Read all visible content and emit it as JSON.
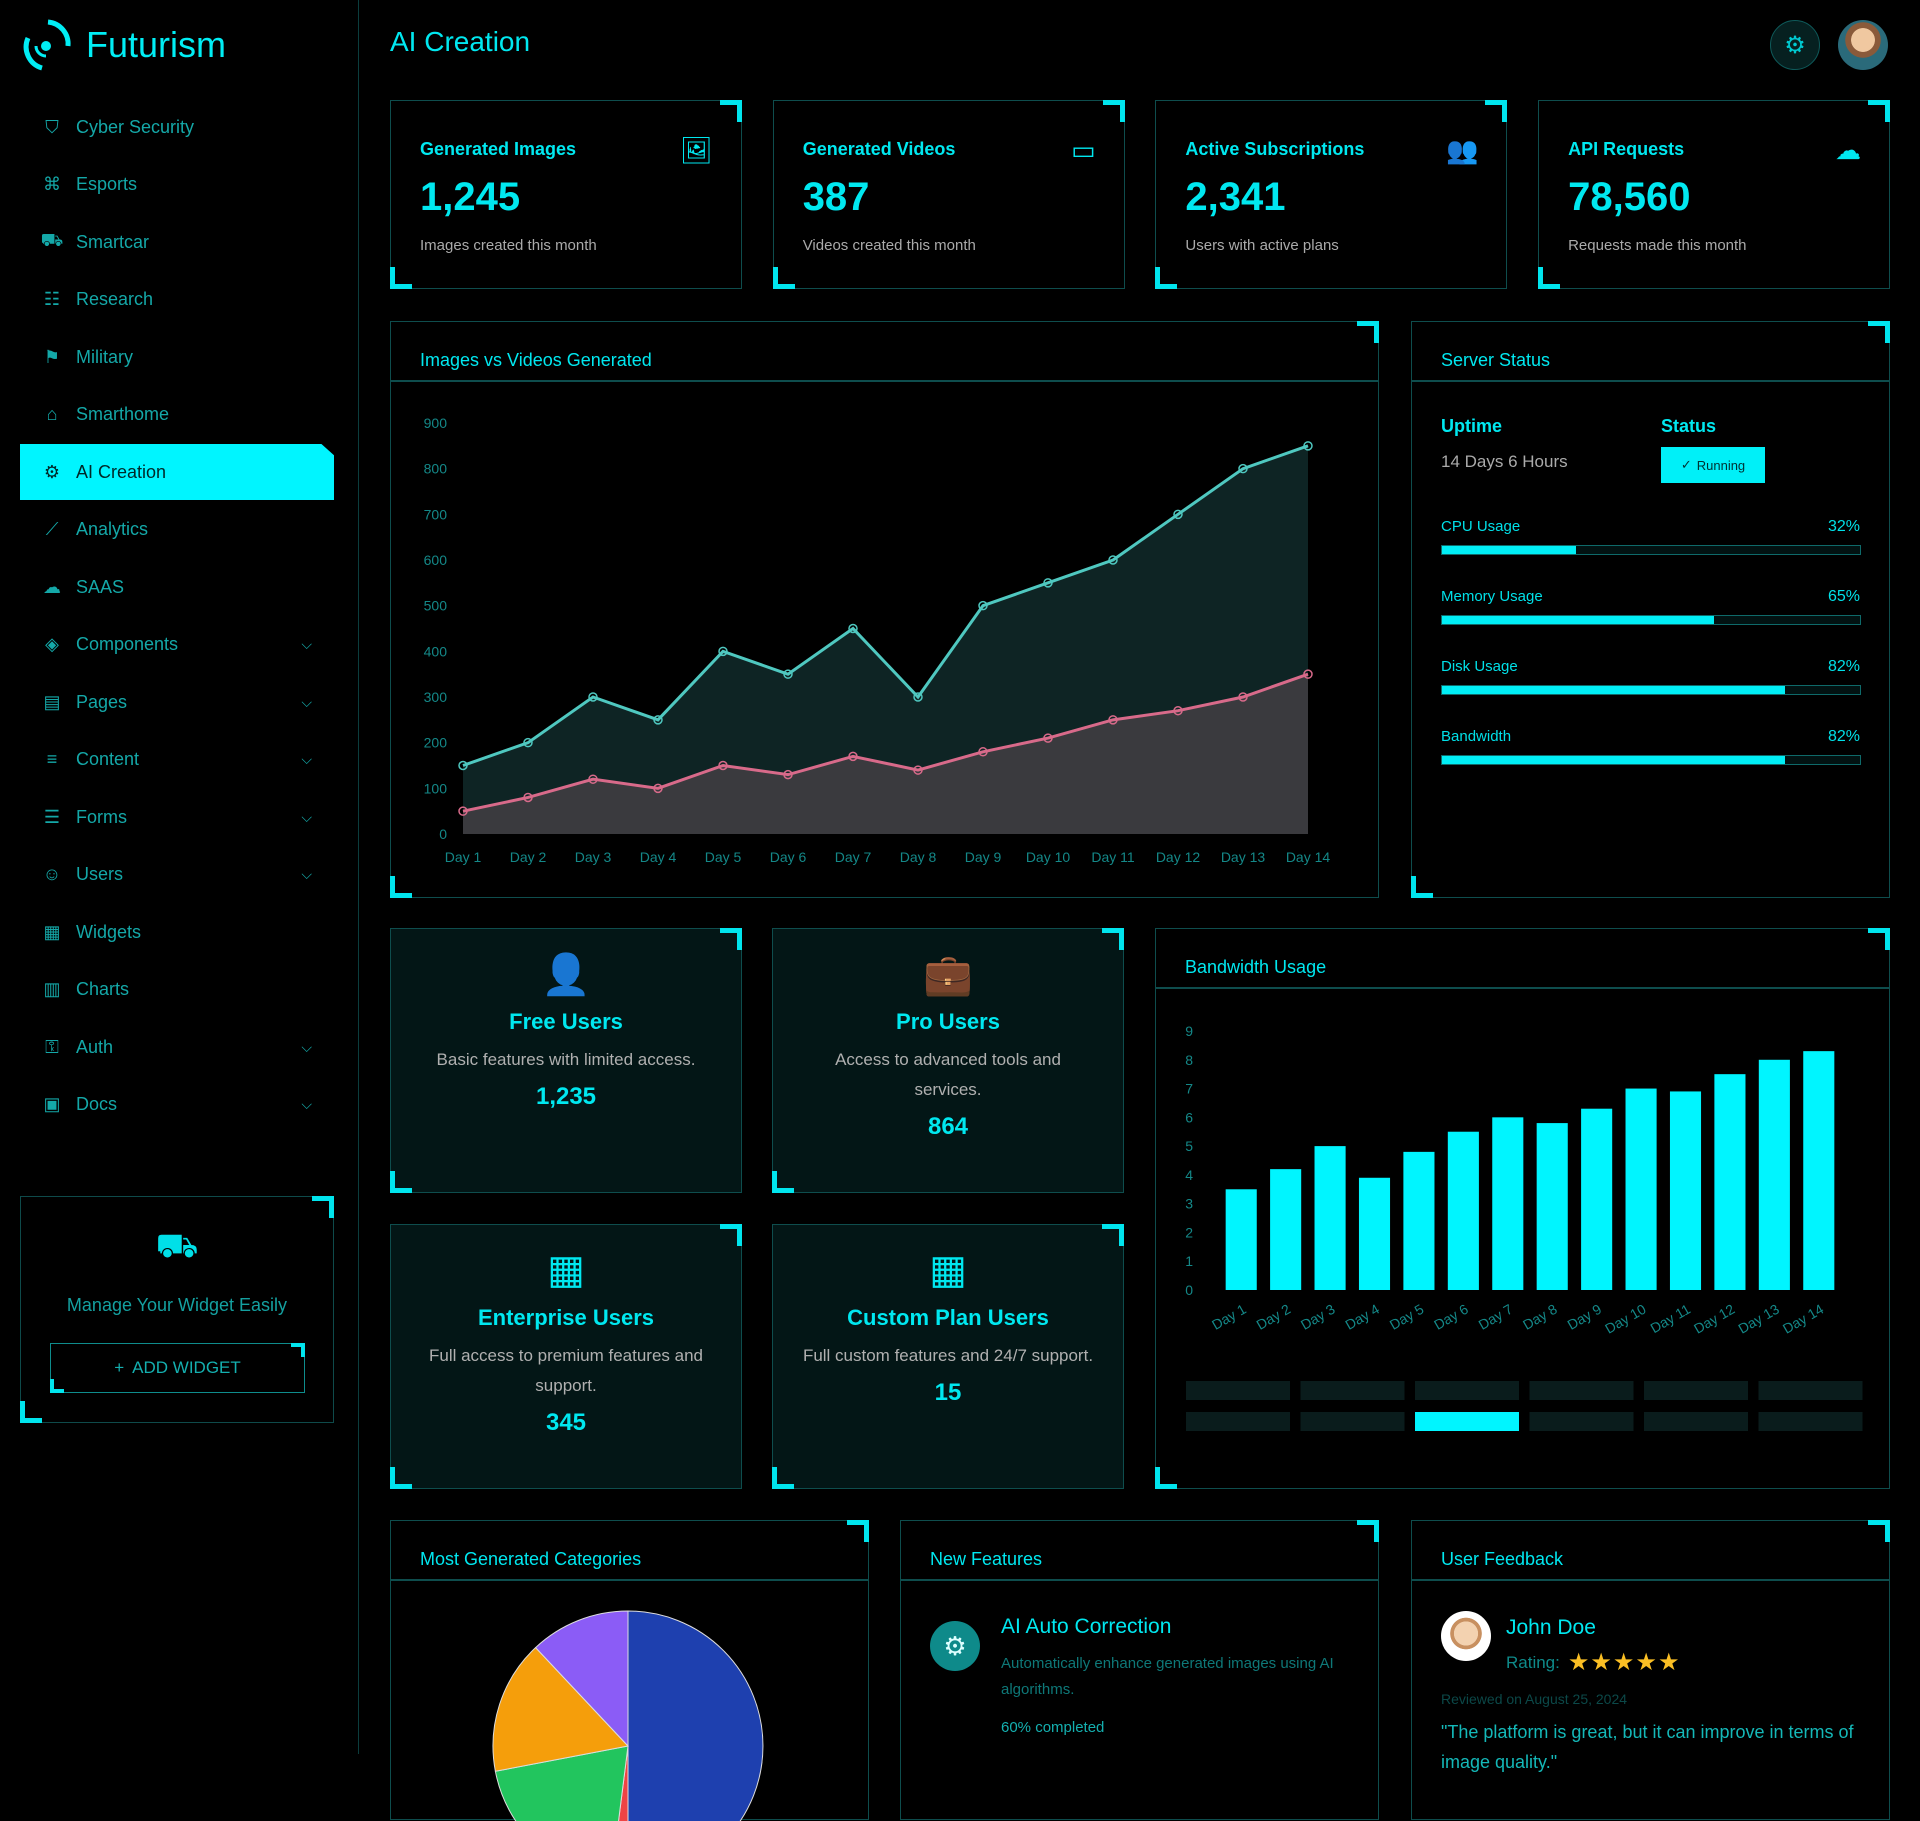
{
  "brand": {
    "name": "Futurism"
  },
  "header": {
    "title": "AI Creation"
  },
  "sidebar": {
    "items": [
      {
        "label": "Cyber Security",
        "icon": "shield-icon",
        "glyph": "⛉"
      },
      {
        "label": "Esports",
        "icon": "gamepad-icon",
        "glyph": "⌘"
      },
      {
        "label": "Smartcar",
        "icon": "car-icon",
        "glyph": "⛟"
      },
      {
        "label": "Research",
        "icon": "list-icon",
        "glyph": "☷"
      },
      {
        "label": "Military",
        "icon": "bookmark-icon",
        "glyph": "⚑"
      },
      {
        "label": "Smarthome",
        "icon": "home-icon",
        "glyph": "⌂"
      },
      {
        "label": "AI Creation",
        "icon": "chip-icon",
        "glyph": "⚙",
        "active": true
      },
      {
        "label": "Analytics",
        "icon": "line-chart-icon",
        "glyph": "⟋"
      },
      {
        "label": "SAAS",
        "icon": "cloud-icon",
        "glyph": "☁"
      },
      {
        "label": "Components",
        "icon": "layers-icon",
        "glyph": "◈",
        "expandable": true
      },
      {
        "label": "Pages",
        "icon": "file-icon",
        "glyph": "▤",
        "expandable": true
      },
      {
        "label": "Content",
        "icon": "text-icon",
        "glyph": "≡",
        "expandable": true
      },
      {
        "label": "Forms",
        "icon": "form-icon",
        "glyph": "☰",
        "expandable": true
      },
      {
        "label": "Users",
        "icon": "users-icon",
        "glyph": "☺",
        "expandable": true
      },
      {
        "label": "Widgets",
        "icon": "grid-icon",
        "glyph": "▦"
      },
      {
        "label": "Charts",
        "icon": "bar-chart-icon",
        "glyph": "▥"
      },
      {
        "label": "Auth",
        "icon": "key-icon",
        "glyph": "⚿",
        "expandable": true
      },
      {
        "label": "Docs",
        "icon": "book-icon",
        "glyph": "▣",
        "expandable": true
      }
    ],
    "widget": {
      "text": "Manage Your Widget Easily",
      "button": "ADD WIDGET"
    }
  },
  "stats": [
    {
      "label": "Generated Images",
      "value": "1,245",
      "sub": "Images created this month",
      "icon": "image-icon",
      "glyph": "🖼"
    },
    {
      "label": "Generated Videos",
      "value": "387",
      "sub": "Videos created this month",
      "icon": "video-icon",
      "glyph": "▭"
    },
    {
      "label": "Active Subscriptions",
      "value": "2,341",
      "sub": "Users with active plans",
      "icon": "users-icon",
      "glyph": "👥"
    },
    {
      "label": "API Requests",
      "value": "78,560",
      "sub": "Requests made this month",
      "icon": "cloud-upload-icon",
      "glyph": "☁"
    }
  ],
  "server": {
    "title": "Server Status",
    "uptime_label": "Uptime",
    "uptime": "14 Days 6 Hours",
    "status_label": "Status",
    "status": "Running",
    "metrics": [
      {
        "label": "CPU Usage",
        "value": 32
      },
      {
        "label": "Memory Usage",
        "value": 65
      },
      {
        "label": "Disk Usage",
        "value": 82
      },
      {
        "label": "Bandwidth",
        "value": 82
      }
    ]
  },
  "user_tiers": [
    {
      "title": "Free Users",
      "desc": "Basic features with limited access.",
      "count": "1,235",
      "icon": "user-icon",
      "glyph": "👤"
    },
    {
      "title": "Pro Users",
      "desc": "Access to advanced tools and services.",
      "count": "864",
      "icon": "briefcase-icon",
      "glyph": "💼"
    },
    {
      "title": "Enterprise Users",
      "desc": "Full access to premium features and support.",
      "count": "345",
      "icon": "building-icon",
      "glyph": "▦"
    },
    {
      "title": "Custom Plan Users",
      "desc": "Full custom features and 24/7 support.",
      "count": "15",
      "icon": "building-icon",
      "glyph": "▦"
    }
  ],
  "features": {
    "title": "New Features",
    "items": [
      {
        "title": "AI Auto Correction",
        "desc": "Automatically enhance generated images using AI algorithms.",
        "progress": "60% completed"
      }
    ]
  },
  "feedback": {
    "title": "User Feedback",
    "name": "John Doe",
    "rating_label": "Rating:",
    "rating": 5,
    "date": "Reviewed on August 25, 2024",
    "quote": "\"The platform is great, but it can improve in terms of image quality.\""
  },
  "chart_data": [
    {
      "type": "area",
      "title": "Images vs Videos Generated",
      "categories": [
        "Day 1",
        "Day 2",
        "Day 3",
        "Day 4",
        "Day 5",
        "Day 6",
        "Day 7",
        "Day 8",
        "Day 9",
        "Day 10",
        "Day 11",
        "Day 12",
        "Day 13",
        "Day 14"
      ],
      "yticks": [
        0,
        100,
        200,
        300,
        400,
        500,
        600,
        700,
        800,
        900
      ],
      "ylim": [
        0,
        900
      ],
      "grid": false,
      "series": [
        {
          "values": [
            150,
            200,
            300,
            250,
            400,
            350,
            450,
            300,
            500,
            550,
            600,
            700,
            800,
            850
          ],
          "color": "#4fc8c0"
        },
        {
          "values": [
            50,
            80,
            120,
            100,
            150,
            130,
            170,
            140,
            180,
            210,
            250,
            270,
            300,
            350
          ],
          "color": "#d86a8a"
        }
      ]
    },
    {
      "type": "bar",
      "title": "Bandwidth Usage",
      "categories": [
        "Day 1",
        "Day 2",
        "Day 3",
        "Day 4",
        "Day 5",
        "Day 6",
        "Day 7",
        "Day 8",
        "Day 9",
        "Day 10",
        "Day 11",
        "Day 12",
        "Day 13",
        "Day 14"
      ],
      "yticks": [
        0,
        1,
        2,
        3,
        4,
        5,
        6,
        7,
        8,
        9
      ],
      "ylim": [
        0,
        9
      ],
      "values": [
        3.5,
        4.2,
        5,
        3.9,
        4.8,
        5.5,
        6,
        5.8,
        6.3,
        7,
        6.9,
        7.5,
        8,
        8.3
      ],
      "color": "#00f5ff",
      "grid": false
    },
    {
      "type": "pie",
      "title": "Most Generated Categories",
      "values": [
        50,
        2,
        20,
        16,
        12
      ],
      "colors": [
        "#1e40af",
        "#ef4444",
        "#22c55e",
        "#f59e0b",
        "#8b5cf6"
      ]
    }
  ]
}
